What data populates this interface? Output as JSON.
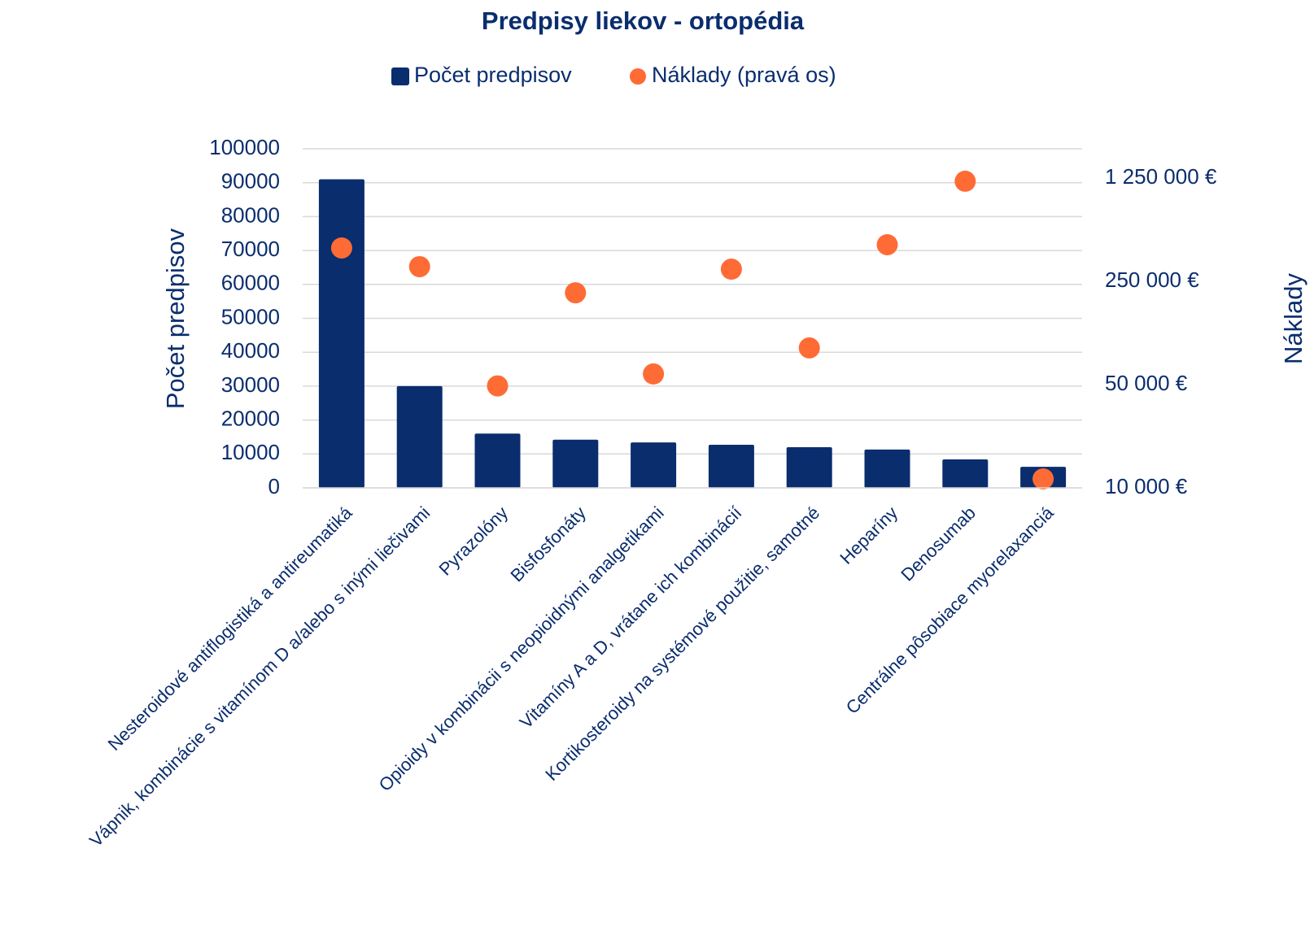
{
  "chart_data": {
    "type": "bar",
    "title": "Predpisy liekov - ortopédia",
    "y_label": "Počet predpisov",
    "y2_label": "Náklady",
    "categories": [
      "Nesteroidové antiflogistiká a antireumatiká",
      "Vápnik, kombinácie s vitamínom D a/alebo s inými liečivami",
      "Pyrazolóny",
      "Bisfosfonáty",
      "Opioidy v kombinácii s neopioidnými analgetikami",
      "Vitamíny A a D, vrátane ich kombinácií",
      "Kortikosteroidy na systémové použitie, samotné",
      "Heparíny",
      "Denosumab",
      "Centrálne pôsobiace myorelaxanciá"
    ],
    "series": [
      {
        "name": "Počet predpisov",
        "type": "bar",
        "color": "#0a2d6e",
        "values": [
          91000,
          30000,
          16000,
          14200,
          13400,
          12700,
          12000,
          11300,
          8400,
          6200
        ]
      },
      {
        "name": "Náklady (pravá os)",
        "type": "scatter",
        "axis": "y2",
        "color": "#ff6b35",
        "values": [
          420000,
          314000,
          49000,
          209000,
          59000,
          302000,
          88500,
          442000,
          1188000,
          11500
        ]
      }
    ],
    "ylim": [
      0,
      100000
    ],
    "yticks": [
      0,
      10000,
      20000,
      30000,
      40000,
      50000,
      60000,
      70000,
      80000,
      90000,
      100000
    ],
    "y2lim": [
      10000,
      1970000
    ],
    "y2log": true,
    "y2ticks": [
      {
        "value": 10000,
        "label": "10 000 €"
      },
      {
        "value": 50000,
        "label": "50 000 €"
      },
      {
        "value": 250000,
        "label": "250 000 €"
      },
      {
        "value": 1250000,
        "label": "1 250 000 €"
      }
    ],
    "grid": true,
    "legend": "top"
  }
}
